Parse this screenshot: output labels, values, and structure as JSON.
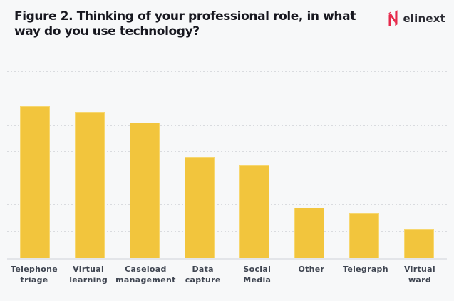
{
  "header": {
    "title": "Figure 2. Thinking of your professional role, in what\nway do you use technology?"
  },
  "logo": {
    "text": "elinext",
    "icon": "elinext-n-icon"
  },
  "colors": {
    "background": "#F7F8F9",
    "bar": "#F2C53D",
    "bar_edge": "#F7D76F",
    "gridline": "#D9DBDF",
    "baseline": "#E3E5E9",
    "title_text": "#17171F",
    "label_text": "#3F4551",
    "logo_red": "#E6294B",
    "logo_text": "#2B2B33"
  },
  "chart_data": {
    "type": "bar",
    "title": "Figure 2. Thinking of your professional role, in what way do you use technology?",
    "categories": [
      "Telephone\ntriage",
      "Virtual\nlearning",
      "Caseload\nmanagement",
      "Data\ncapture",
      "Social\nMedia",
      "Other",
      "Telegraph",
      "Virtual\nward"
    ],
    "values": [
      57,
      55,
      51,
      38,
      35,
      19,
      17,
      11
    ],
    "xlabel": "",
    "ylabel": "",
    "ylim": [
      0,
      70
    ],
    "gridline_step": 10,
    "grid": true,
    "gridline_style": "dotted",
    "legend": false,
    "tick_labels_shown": false,
    "bar_color": "#F2C53D"
  }
}
